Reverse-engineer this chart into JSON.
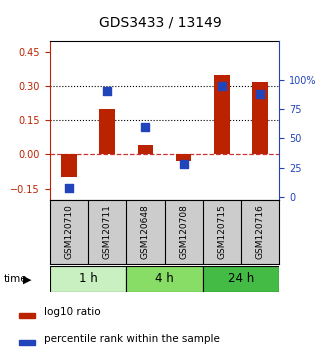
{
  "title": "GDS3433 / 13149",
  "samples": [
    "GSM120710",
    "GSM120711",
    "GSM120648",
    "GSM120708",
    "GSM120715",
    "GSM120716"
  ],
  "log10_ratio": [
    -0.1,
    0.2,
    0.04,
    -0.03,
    0.35,
    0.32
  ],
  "percentile_rank": [
    8,
    90,
    60,
    28,
    95,
    88
  ],
  "time_groups": [
    {
      "label": "1 h",
      "samples": [
        0,
        1
      ],
      "color": "#c8f0c0"
    },
    {
      "label": "4 h",
      "samples": [
        2,
        3
      ],
      "color": "#88dd66"
    },
    {
      "label": "24 h",
      "samples": [
        4,
        5
      ],
      "color": "#44bb44"
    }
  ],
  "ylim_left": [
    -0.2,
    0.5
  ],
  "ylim_right": [
    -2.67,
    133.33
  ],
  "yticks_left": [
    -0.15,
    0,
    0.15,
    0.3,
    0.45
  ],
  "yticks_right": [
    0,
    25,
    50,
    75,
    100
  ],
  "hlines": [
    0.15,
    0.3
  ],
  "bar_color": "#bb2200",
  "dot_color": "#2244bb",
  "zero_line_color": "#cc3333",
  "bar_width": 0.4,
  "dot_size": 28,
  "sample_label_fontsize": 6.5,
  "title_fontsize": 10,
  "legend_fontsize": 7.5,
  "time_label_fontsize": 8.5,
  "background_plot": "#ffffff",
  "background_sample": "#cccccc",
  "background_figure": "#ffffff"
}
